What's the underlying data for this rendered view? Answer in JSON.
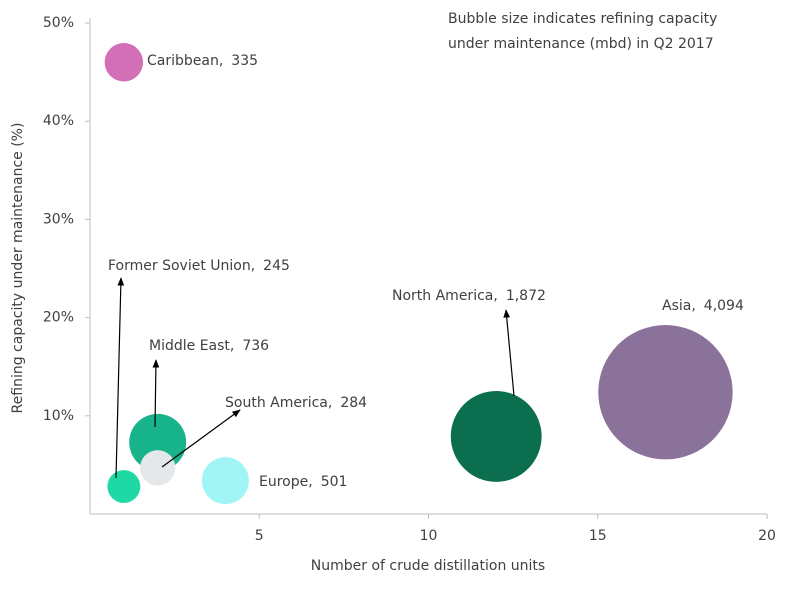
{
  "chart_data": {
    "type": "bubble",
    "annotation": [
      "Bubble size indicates refining capacity",
      "under maintenance (mbd) in Q2 2017"
    ],
    "x_label": "Number of crude distillation units",
    "y_label": "Refining capacity under maintenance (%)",
    "categories": [
      "Caribbean,",
      "Former Soviet Union,",
      "Middle East,",
      "South America,",
      "Europe,",
      "North America,",
      "Asia,"
    ],
    "x": [
      1,
      1,
      2,
      2,
      4,
      12,
      17
    ],
    "values": [
      46,
      2.8,
      7.3,
      4.7,
      3.4,
      7.9,
      12.4
    ],
    "sizes": [
      335,
      245,
      736,
      284,
      501,
      1872,
      4094
    ],
    "size_labels": [
      "335",
      "245",
      "736",
      "284",
      "501",
      "1,872",
      "4,094"
    ],
    "colors": [
      "#d36fb6",
      "#1ed9a4",
      "#17b38a",
      "#e5e8ea",
      "#a2f5f5",
      "#0b6e4f",
      "#8a729a"
    ],
    "xlim": [
      0,
      20
    ],
    "xticks": [
      5,
      10,
      15,
      20
    ],
    "ylim": [
      0,
      50
    ],
    "yticks": [
      {
        "value": 10,
        "label": "10%"
      },
      {
        "value": 20,
        "label": "20%"
      },
      {
        "value": 30,
        "label": "30%"
      },
      {
        "value": 40,
        "label": "40%"
      },
      {
        "value": 50,
        "label": "50%"
      }
    ]
  }
}
